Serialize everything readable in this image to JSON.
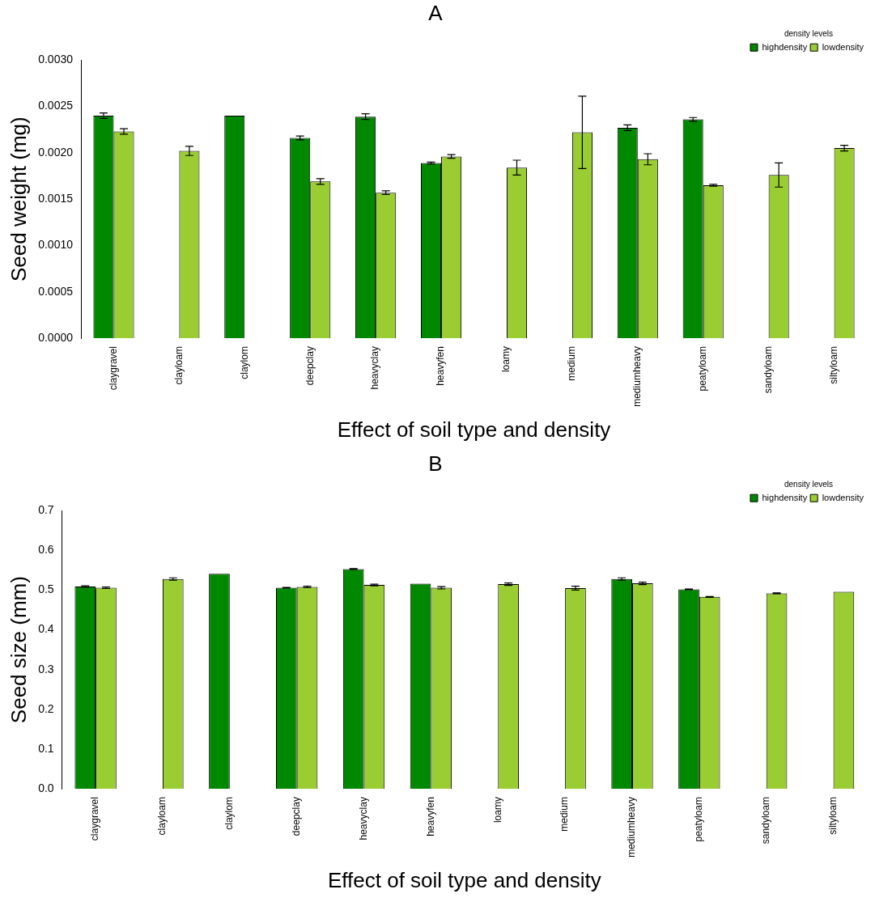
{
  "chart_data": [
    {
      "type": "bar",
      "title": "A",
      "xlabel": "Effect of soil type and density",
      "ylabel": "Seed weight (mg)",
      "legend_title": "density levels",
      "legend": "top right",
      "grid": false,
      "categories": [
        "claygravel",
        "clayloam",
        "claylom",
        "deepclay",
        "heavyclay",
        "heavyfen",
        "loamy",
        "medium",
        "mediumheavy",
        "peatyloam",
        "sandyloam",
        "siltyloam"
      ],
      "ylim": [
        0,
        0.003
      ],
      "yticks": [
        {
          "value": 0,
          "label": "0.0000"
        },
        {
          "value": 0.0005,
          "label": "0.0005"
        },
        {
          "value": 0.001,
          "label": "0.0010"
        },
        {
          "value": 0.0015,
          "label": "0.0015"
        },
        {
          "value": 0.002,
          "label": "0.0020"
        },
        {
          "value": 0.0025,
          "label": "0.0025"
        },
        {
          "value": 0.003,
          "label": "0.0030"
        }
      ],
      "series": [
        {
          "name": "highdensity",
          "color": "#008800",
          "values": [
            0.0024,
            null,
            0.0024,
            0.00216,
            0.00239,
            0.00189,
            null,
            null,
            0.00227,
            0.00236,
            null,
            null
          ],
          "errors": [
            3e-05,
            null,
            null,
            2e-05,
            3e-05,
            1e-05,
            null,
            null,
            3e-05,
            2e-05,
            null,
            null
          ]
        },
        {
          "name": "lowdensity",
          "color": "#9acd32",
          "values": [
            0.00223,
            0.00202,
            null,
            0.00169,
            0.00157,
            0.00196,
            0.00184,
            0.00222,
            0.00193,
            0.00165,
            0.00176,
            0.00205
          ],
          "errors": [
            3e-05,
            5e-05,
            null,
            3e-05,
            2e-05,
            2e-05,
            8e-05,
            0.00039,
            6e-05,
            1e-05,
            0.00013,
            3e-05
          ]
        }
      ]
    },
    {
      "type": "bar",
      "title": "B",
      "xlabel": "Effect of soil type and density",
      "ylabel": "Seed size (mm)",
      "legend_title": "density levels",
      "legend": "top right",
      "grid": false,
      "categories": [
        "claygravel",
        "clayloam",
        "claylom",
        "deepclay",
        "heavyclay",
        "heavyfen",
        "loamy",
        "medium",
        "mediumheavy",
        "peatyloam",
        "sandyloam",
        "siltyloam"
      ],
      "ylim": [
        0,
        0.7
      ],
      "yticks": [
        {
          "value": 0,
          "label": "0.0"
        },
        {
          "value": 0.1,
          "label": "0.1"
        },
        {
          "value": 0.2,
          "label": "0.2"
        },
        {
          "value": 0.3,
          "label": "0.3"
        },
        {
          "value": 0.4,
          "label": "0.4"
        },
        {
          "value": 0.5,
          "label": "0.5"
        },
        {
          "value": 0.6,
          "label": "0.6"
        },
        {
          "value": 0.7,
          "label": "0.7"
        }
      ],
      "series": [
        {
          "name": "highdensity",
          "color": "#008800",
          "values": [
            0.509,
            null,
            0.541,
            0.506,
            0.553,
            0.516,
            null,
            null,
            0.528,
            0.502,
            null,
            null
          ],
          "errors": [
            0.002,
            null,
            null,
            0.001,
            0.001,
            null,
            null,
            null,
            0.003,
            0.001,
            null,
            null
          ]
        },
        {
          "name": "lowdensity",
          "color": "#9acd32",
          "values": [
            0.506,
            0.528,
            null,
            0.508,
            0.513,
            0.506,
            0.515,
            0.505,
            0.517,
            0.483,
            0.492,
            0.496
          ],
          "errors": [
            0.002,
            0.003,
            null,
            0.002,
            0.002,
            0.003,
            0.003,
            0.005,
            0.003,
            0.001,
            0.001,
            null
          ]
        }
      ]
    }
  ]
}
